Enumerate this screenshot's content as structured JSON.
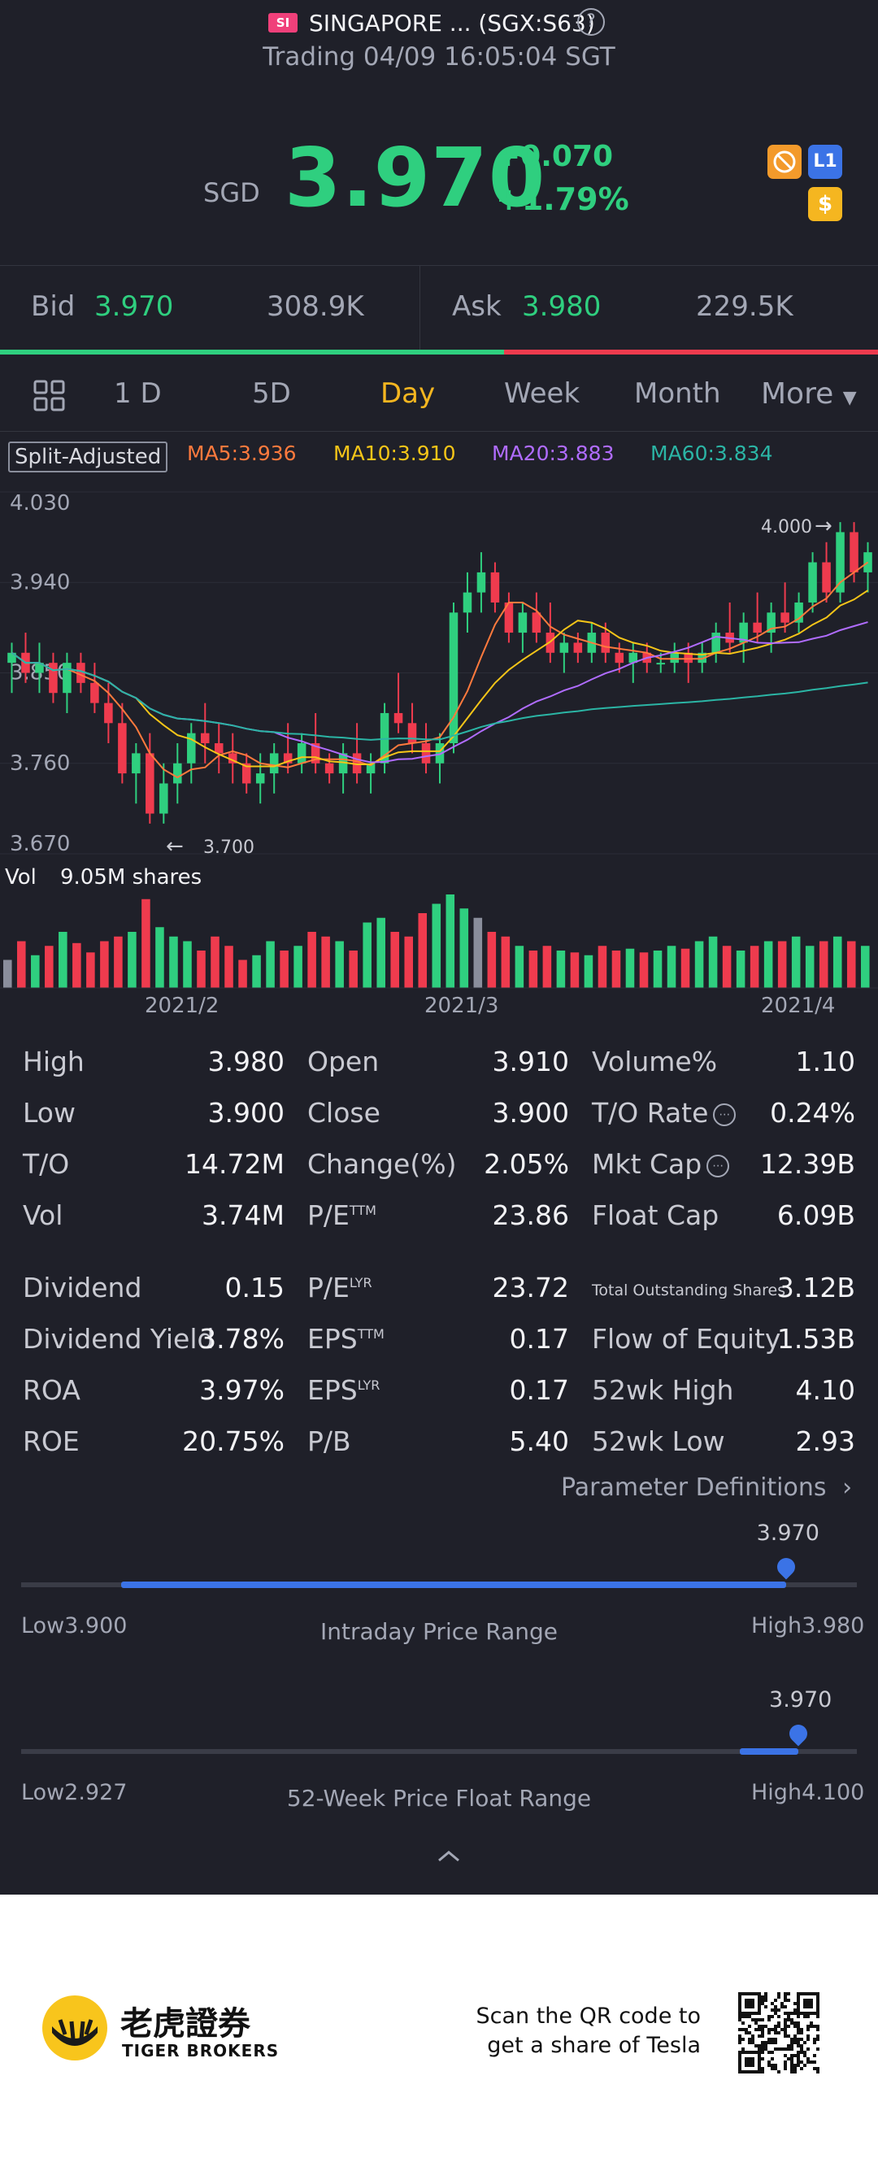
{
  "header": {
    "badge": "SI",
    "name": "SINGAPORE ... (SGX:S63)",
    "help": "?",
    "status": "Trading 04/09 16:05:04 SGT"
  },
  "quote": {
    "currency": "SGD",
    "price": "3.970",
    "change": "+0.070",
    "change_pct": "+1.79%",
    "badges": [
      "slash-icon",
      "L1",
      "$"
    ]
  },
  "bidask": {
    "bid_label": "Bid",
    "bid_price": "3.970",
    "bid_size": "308.9K",
    "ask_label": "Ask",
    "ask_price": "3.980",
    "ask_size": "229.5K",
    "bid_ratio": 0.574
  },
  "tabs": [
    "1 D",
    "5D",
    "Day",
    "Week",
    "Month",
    "More"
  ],
  "active_tab": "Day",
  "ma": {
    "split": "Split-Adjusted",
    "ma5": "MA5:3.936",
    "ma10": "MA10:3.910",
    "ma20": "MA20:3.883",
    "ma60": "MA60:3.834",
    "colors": {
      "ma5": "#ff7a3d",
      "ma10": "#f5c518",
      "ma20": "#b06cff",
      "ma60": "#2bb5a5"
    }
  },
  "chart_data": {
    "type": "candlestick",
    "y_ticks": [
      "4.030",
      "3.940",
      "3.850",
      "3.760",
      "3.670"
    ],
    "ylim": [
      3.67,
      4.03
    ],
    "high_label": "4.000",
    "low_label": "3.700",
    "x_labels": [
      "2021/2",
      "2021/3",
      "2021/4"
    ],
    "volume_label": "Vol",
    "volume_value": "9.05M shares",
    "candles": [
      [
        3.86,
        3.88,
        3.83,
        3.87
      ],
      [
        3.87,
        3.89,
        3.84,
        3.85
      ],
      [
        3.85,
        3.88,
        3.83,
        3.86
      ],
      [
        3.86,
        3.87,
        3.82,
        3.83
      ],
      [
        3.83,
        3.87,
        3.81,
        3.86
      ],
      [
        3.86,
        3.87,
        3.83,
        3.84
      ],
      [
        3.84,
        3.86,
        3.81,
        3.82
      ],
      [
        3.82,
        3.84,
        3.78,
        3.8
      ],
      [
        3.8,
        3.82,
        3.74,
        3.75
      ],
      [
        3.75,
        3.78,
        3.72,
        3.77
      ],
      [
        3.77,
        3.79,
        3.7,
        3.71
      ],
      [
        3.71,
        3.76,
        3.7,
        3.74
      ],
      [
        3.74,
        3.78,
        3.72,
        3.76
      ],
      [
        3.76,
        3.8,
        3.74,
        3.79
      ],
      [
        3.79,
        3.82,
        3.76,
        3.78
      ],
      [
        3.78,
        3.8,
        3.75,
        3.77
      ],
      [
        3.77,
        3.79,
        3.74,
        3.76
      ],
      [
        3.76,
        3.77,
        3.73,
        3.74
      ],
      [
        3.74,
        3.77,
        3.72,
        3.75
      ],
      [
        3.75,
        3.78,
        3.73,
        3.77
      ],
      [
        3.77,
        3.8,
        3.75,
        3.76
      ],
      [
        3.76,
        3.79,
        3.75,
        3.78
      ],
      [
        3.78,
        3.81,
        3.75,
        3.76
      ],
      [
        3.76,
        3.77,
        3.74,
        3.75
      ],
      [
        3.75,
        3.78,
        3.73,
        3.77
      ],
      [
        3.77,
        3.8,
        3.74,
        3.75
      ],
      [
        3.75,
        3.77,
        3.73,
        3.76
      ],
      [
        3.76,
        3.82,
        3.75,
        3.81
      ],
      [
        3.81,
        3.85,
        3.79,
        3.8
      ],
      [
        3.8,
        3.82,
        3.77,
        3.78
      ],
      [
        3.78,
        3.8,
        3.75,
        3.76
      ],
      [
        3.76,
        3.79,
        3.74,
        3.78
      ],
      [
        3.78,
        3.92,
        3.77,
        3.91
      ],
      [
        3.91,
        3.95,
        3.89,
        3.93
      ],
      [
        3.93,
        3.97,
        3.91,
        3.95
      ],
      [
        3.95,
        3.96,
        3.91,
        3.92
      ],
      [
        3.92,
        3.93,
        3.88,
        3.89
      ],
      [
        3.89,
        3.92,
        3.87,
        3.91
      ],
      [
        3.91,
        3.93,
        3.88,
        3.89
      ],
      [
        3.89,
        3.92,
        3.86,
        3.87
      ],
      [
        3.87,
        3.89,
        3.85,
        3.88
      ],
      [
        3.88,
        3.89,
        3.86,
        3.87
      ],
      [
        3.87,
        3.9,
        3.86,
        3.89
      ],
      [
        3.89,
        3.9,
        3.86,
        3.87
      ],
      [
        3.87,
        3.88,
        3.85,
        3.86
      ],
      [
        3.86,
        3.88,
        3.84,
        3.87
      ],
      [
        3.87,
        3.88,
        3.85,
        3.86
      ],
      [
        3.86,
        3.87,
        3.85,
        3.86
      ],
      [
        3.86,
        3.88,
        3.85,
        3.87
      ],
      [
        3.87,
        3.88,
        3.84,
        3.86
      ],
      [
        3.86,
        3.88,
        3.85,
        3.87
      ],
      [
        3.87,
        3.9,
        3.86,
        3.89
      ],
      [
        3.89,
        3.92,
        3.87,
        3.88
      ],
      [
        3.88,
        3.91,
        3.86,
        3.9
      ],
      [
        3.9,
        3.93,
        3.88,
        3.89
      ],
      [
        3.89,
        3.92,
        3.87,
        3.91
      ],
      [
        3.91,
        3.94,
        3.89,
        3.9
      ],
      [
        3.9,
        3.93,
        3.89,
        3.92
      ],
      [
        3.92,
        3.97,
        3.91,
        3.96
      ],
      [
        3.96,
        3.98,
        3.92,
        3.93
      ],
      [
        3.93,
        4.0,
        3.92,
        3.99
      ],
      [
        3.99,
        4.0,
        3.94,
        3.95
      ],
      [
        3.95,
        3.98,
        3.93,
        3.97
      ]
    ],
    "volumes": [
      0.3,
      0.5,
      0.35,
      0.45,
      0.6,
      0.48,
      0.38,
      0.5,
      0.55,
      0.6,
      0.95,
      0.65,
      0.55,
      0.5,
      0.4,
      0.55,
      0.45,
      0.3,
      0.35,
      0.5,
      0.4,
      0.45,
      0.6,
      0.55,
      0.5,
      0.4,
      0.7,
      0.75,
      0.6,
      0.55,
      0.8,
      0.9,
      1.0,
      0.85,
      0.75,
      0.6,
      0.55,
      0.45,
      0.4,
      0.45,
      0.4,
      0.38,
      0.35,
      0.45,
      0.4,
      0.42,
      0.38,
      0.4,
      0.45,
      0.42,
      0.5,
      0.55,
      0.45,
      0.4,
      0.45,
      0.5,
      0.5,
      0.55,
      0.45,
      0.5,
      0.55,
      0.5,
      0.45
    ]
  },
  "stats": [
    [
      [
        "High",
        "3.980"
      ],
      [
        "Open",
        "3.910"
      ],
      [
        "Volume%",
        "1.10"
      ]
    ],
    [
      [
        "Low",
        "3.900"
      ],
      [
        "Close",
        "3.900"
      ],
      [
        "T/O Rate",
        "0.24%"
      ]
    ],
    [
      [
        "T/O",
        "14.72M"
      ],
      [
        "Change(%)",
        "2.05%"
      ],
      [
        "Mkt Cap",
        "12.39B"
      ]
    ],
    [
      [
        "Vol",
        "3.74M"
      ],
      [
        "P/E",
        "23.86"
      ],
      [
        "Float Cap",
        "6.09B"
      ]
    ],
    [
      [
        "Dividend",
        "0.15"
      ],
      [
        "P/E",
        "23.72"
      ],
      [
        "Total Outstanding Shares",
        "3.12B"
      ]
    ],
    [
      [
        "Dividend Yield",
        "3.78%"
      ],
      [
        "EPS",
        "0.17"
      ],
      [
        "Flow of Equity",
        "1.53B"
      ]
    ],
    [
      [
        "ROA",
        "3.97%"
      ],
      [
        "EPS",
        "0.17"
      ],
      [
        "52wk High",
        "4.10"
      ]
    ],
    [
      [
        "ROE",
        "20.75%"
      ],
      [
        "P/B",
        "5.40"
      ],
      [
        "52wk Low",
        "2.93"
      ]
    ]
  ],
  "sup": {
    "ttm": "TTM",
    "lyr": "LYR"
  },
  "param_defs": "Parameter Definitions",
  "intraday": {
    "price": "3.970",
    "low_label": "Low",
    "low": "3.900",
    "title": "Intraday Price Range",
    "high_label": "High",
    "high": "3.980",
    "lo_frac": 0.12,
    "hi_frac": 0.915
  },
  "week52": {
    "price": "3.970",
    "low_label": "Low",
    "low": "2.927",
    "title": "52-Week Price Float Range",
    "high_label": "High",
    "high": "4.100",
    "lo_frac": 0.86,
    "hi_frac": 0.93
  },
  "footer": {
    "brand_cn": "老虎證券",
    "brand_en": "TIGER BROKERS",
    "qr_text_1": "Scan the QR code to",
    "qr_text_2": "get a share of Tesla"
  }
}
